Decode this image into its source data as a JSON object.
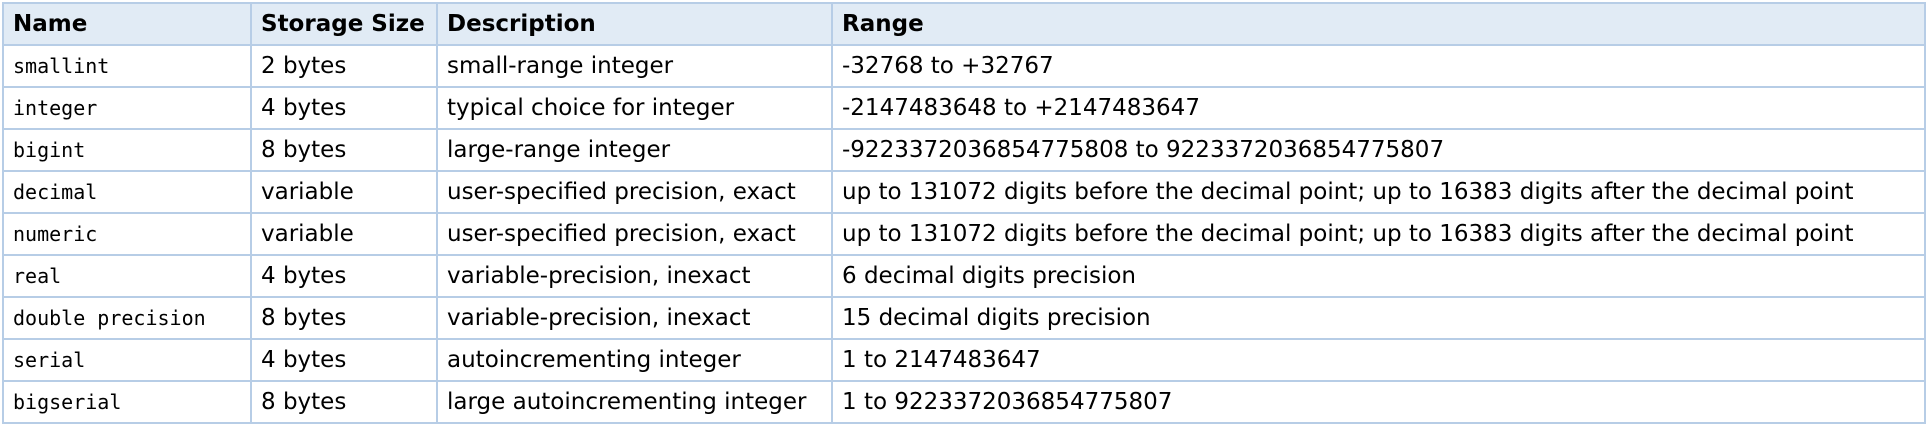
{
  "table": {
    "headers": [
      "Name",
      "Storage Size",
      "Description",
      "Range"
    ],
    "rows": [
      [
        "smallint",
        "2 bytes",
        "small-range integer",
        "-32768 to +32767"
      ],
      [
        "integer",
        "4 bytes",
        "typical choice for integer",
        "-2147483648 to +2147483647"
      ],
      [
        "bigint",
        "8 bytes",
        "large-range integer",
        "-9223372036854775808 to 9223372036854775807"
      ],
      [
        "decimal",
        "variable",
        "user-specified precision, exact",
        "up to 131072 digits before the decimal point; up to 16383 digits after the decimal point"
      ],
      [
        "numeric",
        "variable",
        "user-specified precision, exact",
        "up to 131072 digits before the decimal point; up to 16383 digits after the decimal point"
      ],
      [
        "real",
        "4 bytes",
        "variable-precision, inexact",
        "6 decimal digits precision"
      ],
      [
        "double precision",
        "8 bytes",
        "variable-precision, inexact",
        "15 decimal digits precision"
      ],
      [
        "serial",
        "4 bytes",
        "autoincrementing integer",
        "1 to 2147483647"
      ],
      [
        "bigserial",
        "8 bytes",
        "large autoincrementing integer",
        "1 to 9223372036854775807"
      ]
    ]
  },
  "colors": {
    "header_background": "#e1ebf5",
    "border": "#b7cde6",
    "text": "#000000"
  }
}
